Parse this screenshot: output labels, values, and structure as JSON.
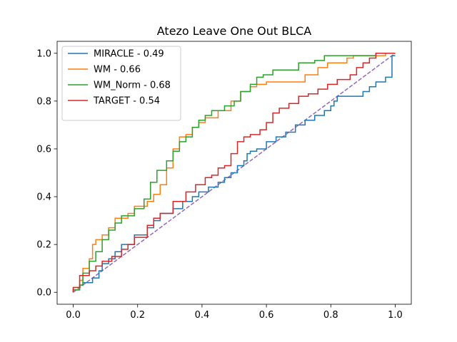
{
  "chart_data": {
    "type": "line",
    "title": "Atezo Leave One Out BLCA",
    "xlabel": "",
    "ylabel": "",
    "xlim": [
      -0.05,
      1.05
    ],
    "ylim": [
      -0.05,
      1.05
    ],
    "xticks": [
      0.0,
      0.2,
      0.4,
      0.6,
      0.8,
      1.0
    ],
    "yticks": [
      0.0,
      0.2,
      0.4,
      0.6,
      0.8,
      1.0
    ],
    "xtick_labels": [
      "0.0",
      "0.2",
      "0.4",
      "0.6",
      "0.8",
      "1.0"
    ],
    "ytick_labels": [
      "0.0",
      "0.2",
      "0.4",
      "0.6",
      "0.8",
      "1.0"
    ],
    "grid": false,
    "legend_position": "top-left",
    "diagonal": {
      "x": [
        0,
        1
      ],
      "y": [
        0,
        1
      ],
      "color": "#9467bd",
      "style": "dashed"
    },
    "series": [
      {
        "name": "MIRACLE - 0.49",
        "color": "#1f77b4",
        "step": true,
        "x": [
          0.0,
          0.0,
          0.02,
          0.02,
          0.03,
          0.03,
          0.05,
          0.05,
          0.06,
          0.06,
          0.08,
          0.08,
          0.09,
          0.09,
          0.11,
          0.11,
          0.13,
          0.13,
          0.15,
          0.15,
          0.17,
          0.17,
          0.19,
          0.19,
          0.23,
          0.23,
          0.25,
          0.25,
          0.27,
          0.27,
          0.29,
          0.29,
          0.31,
          0.31,
          0.34,
          0.34,
          0.37,
          0.37,
          0.39,
          0.39,
          0.42,
          0.42,
          0.45,
          0.45,
          0.47,
          0.47,
          0.49,
          0.49,
          0.51,
          0.51,
          0.53,
          0.53,
          0.54,
          0.54,
          0.55,
          0.55,
          0.57,
          0.57,
          0.6,
          0.6,
          0.63,
          0.63,
          0.66,
          0.66,
          0.69,
          0.69,
          0.72,
          0.72,
          0.75,
          0.75,
          0.78,
          0.78,
          0.8,
          0.8,
          0.81,
          0.81,
          0.82,
          0.82,
          0.84,
          0.84,
          0.9,
          0.9,
          0.92,
          0.92,
          0.94,
          0.94,
          0.97,
          0.97,
          0.99,
          0.99,
          1.0
        ],
        "y": [
          0.0,
          0.01,
          0.01,
          0.03,
          0.03,
          0.04,
          0.04,
          0.04,
          0.04,
          0.06,
          0.06,
          0.09,
          0.09,
          0.12,
          0.12,
          0.14,
          0.14,
          0.17,
          0.17,
          0.2,
          0.2,
          0.2,
          0.2,
          0.24,
          0.24,
          0.27,
          0.27,
          0.3,
          0.3,
          0.33,
          0.33,
          0.33,
          0.33,
          0.35,
          0.35,
          0.38,
          0.38,
          0.4,
          0.4,
          0.42,
          0.42,
          0.44,
          0.44,
          0.46,
          0.46,
          0.48,
          0.48,
          0.5,
          0.5,
          0.53,
          0.53,
          0.55,
          0.55,
          0.58,
          0.58,
          0.59,
          0.59,
          0.6,
          0.6,
          0.63,
          0.63,
          0.65,
          0.65,
          0.67,
          0.67,
          0.7,
          0.7,
          0.72,
          0.72,
          0.74,
          0.74,
          0.76,
          0.76,
          0.78,
          0.78,
          0.8,
          0.8,
          0.82,
          0.82,
          0.82,
          0.82,
          0.84,
          0.84,
          0.86,
          0.86,
          0.88,
          0.88,
          0.9,
          0.9,
          0.99,
          0.99
        ]
      },
      {
        "name": "WM - 0.66",
        "color": "#ff7f0e",
        "step": true,
        "x": [
          0.0,
          0.0,
          0.02,
          0.02,
          0.03,
          0.03,
          0.05,
          0.05,
          0.06,
          0.06,
          0.07,
          0.07,
          0.09,
          0.09,
          0.11,
          0.11,
          0.13,
          0.13,
          0.17,
          0.17,
          0.19,
          0.19,
          0.23,
          0.23,
          0.25,
          0.25,
          0.27,
          0.27,
          0.29,
          0.29,
          0.31,
          0.31,
          0.33,
          0.33,
          0.35,
          0.35,
          0.37,
          0.37,
          0.39,
          0.39,
          0.41,
          0.41,
          0.43,
          0.43,
          0.45,
          0.45,
          0.49,
          0.49,
          0.52,
          0.52,
          0.55,
          0.55,
          0.57,
          0.57,
          0.6,
          0.6,
          0.63,
          0.63,
          0.66,
          0.66,
          0.72,
          0.72,
          0.76,
          0.76,
          0.79,
          0.79,
          0.82,
          0.82,
          0.85,
          0.85,
          0.87,
          0.87,
          0.95,
          0.95,
          0.97,
          0.97,
          1.0
        ],
        "y": [
          0.0,
          0.02,
          0.02,
          0.05,
          0.05,
          0.1,
          0.1,
          0.14,
          0.14,
          0.2,
          0.2,
          0.22,
          0.22,
          0.24,
          0.24,
          0.27,
          0.27,
          0.31,
          0.31,
          0.33,
          0.33,
          0.36,
          0.36,
          0.38,
          0.38,
          0.41,
          0.41,
          0.45,
          0.45,
          0.52,
          0.52,
          0.6,
          0.6,
          0.65,
          0.65,
          0.66,
          0.66,
          0.69,
          0.69,
          0.71,
          0.71,
          0.73,
          0.73,
          0.73,
          0.73,
          0.76,
          0.76,
          0.8,
          0.8,
          0.84,
          0.84,
          0.86,
          0.86,
          0.87,
          0.87,
          0.88,
          0.88,
          0.88,
          0.88,
          0.88,
          0.88,
          0.91,
          0.91,
          0.94,
          0.94,
          0.96,
          0.96,
          0.96,
          0.96,
          0.98,
          0.98,
          0.99,
          0.99,
          0.99,
          0.99,
          1.0,
          1.0
        ]
      },
      {
        "name": "WM_Norm - 0.68",
        "color": "#2ca02c",
        "step": true,
        "x": [
          0.0,
          0.0,
          0.02,
          0.02,
          0.03,
          0.03,
          0.05,
          0.05,
          0.07,
          0.07,
          0.09,
          0.09,
          0.11,
          0.11,
          0.13,
          0.13,
          0.15,
          0.15,
          0.19,
          0.19,
          0.22,
          0.22,
          0.24,
          0.24,
          0.26,
          0.26,
          0.29,
          0.29,
          0.31,
          0.31,
          0.33,
          0.33,
          0.35,
          0.35,
          0.37,
          0.37,
          0.39,
          0.39,
          0.41,
          0.41,
          0.43,
          0.43,
          0.47,
          0.47,
          0.5,
          0.5,
          0.52,
          0.52,
          0.55,
          0.55,
          0.57,
          0.57,
          0.59,
          0.59,
          0.62,
          0.62,
          0.66,
          0.66,
          0.7,
          0.7,
          0.75,
          0.75,
          0.78,
          0.78,
          0.82,
          0.82,
          0.86,
          0.86,
          0.9,
          0.9,
          0.94,
          0.94,
          1.0
        ],
        "y": [
          0.0,
          0.01,
          0.01,
          0.03,
          0.03,
          0.08,
          0.08,
          0.13,
          0.13,
          0.17,
          0.17,
          0.22,
          0.22,
          0.26,
          0.26,
          0.29,
          0.29,
          0.32,
          0.32,
          0.35,
          0.35,
          0.39,
          0.39,
          0.46,
          0.46,
          0.51,
          0.51,
          0.55,
          0.55,
          0.59,
          0.59,
          0.63,
          0.63,
          0.65,
          0.65,
          0.69,
          0.69,
          0.72,
          0.72,
          0.74,
          0.74,
          0.76,
          0.76,
          0.78,
          0.78,
          0.8,
          0.8,
          0.84,
          0.84,
          0.87,
          0.87,
          0.9,
          0.9,
          0.91,
          0.91,
          0.93,
          0.93,
          0.93,
          0.93,
          0.96,
          0.96,
          0.97,
          0.97,
          0.99,
          0.99,
          0.99,
          0.99,
          0.99,
          0.99,
          0.99,
          0.99,
          1.0,
          1.0
        ]
      },
      {
        "name": "TARGET - 0.54",
        "color": "#d62728",
        "step": true,
        "x": [
          0.0,
          0.0,
          0.02,
          0.02,
          0.03,
          0.03,
          0.05,
          0.05,
          0.07,
          0.07,
          0.09,
          0.09,
          0.12,
          0.12,
          0.15,
          0.15,
          0.17,
          0.17,
          0.19,
          0.19,
          0.23,
          0.23,
          0.25,
          0.25,
          0.27,
          0.27,
          0.31,
          0.31,
          0.35,
          0.35,
          0.38,
          0.38,
          0.41,
          0.41,
          0.43,
          0.43,
          0.45,
          0.45,
          0.47,
          0.47,
          0.49,
          0.49,
          0.51,
          0.51,
          0.53,
          0.53,
          0.55,
          0.55,
          0.58,
          0.58,
          0.6,
          0.6,
          0.62,
          0.62,
          0.64,
          0.64,
          0.67,
          0.67,
          0.7,
          0.7,
          0.73,
          0.73,
          0.76,
          0.76,
          0.79,
          0.79,
          0.82,
          0.82,
          0.86,
          0.86,
          0.88,
          0.88,
          0.9,
          0.9,
          0.92,
          0.92,
          0.94,
          0.94,
          0.98,
          0.98,
          1.0
        ],
        "y": [
          0.0,
          0.02,
          0.02,
          0.07,
          0.07,
          0.07,
          0.07,
          0.09,
          0.09,
          0.11,
          0.11,
          0.13,
          0.13,
          0.15,
          0.15,
          0.18,
          0.18,
          0.2,
          0.2,
          0.23,
          0.23,
          0.28,
          0.28,
          0.31,
          0.31,
          0.33,
          0.33,
          0.38,
          0.38,
          0.42,
          0.42,
          0.45,
          0.45,
          0.48,
          0.48,
          0.49,
          0.49,
          0.52,
          0.52,
          0.53,
          0.53,
          0.58,
          0.58,
          0.63,
          0.63,
          0.65,
          0.65,
          0.66,
          0.66,
          0.68,
          0.68,
          0.71,
          0.71,
          0.75,
          0.75,
          0.77,
          0.77,
          0.79,
          0.79,
          0.82,
          0.82,
          0.83,
          0.83,
          0.85,
          0.85,
          0.87,
          0.87,
          0.89,
          0.89,
          0.91,
          0.91,
          0.94,
          0.94,
          0.96,
          0.96,
          0.98,
          0.98,
          1.0,
          1.0,
          1.0,
          1.0
        ]
      }
    ]
  }
}
